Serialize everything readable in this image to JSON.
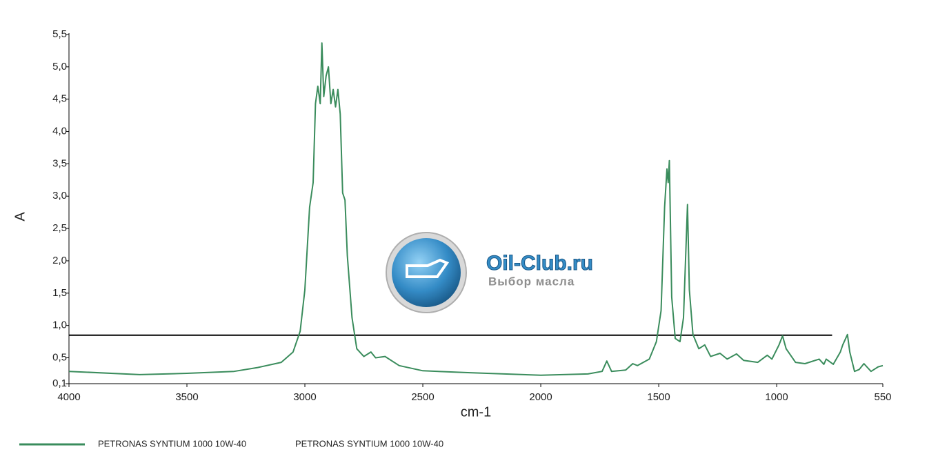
{
  "chart_data": {
    "type": "line",
    "y_label": "A",
    "x_label": "cm-1",
    "xlim": [
      4000,
      550
    ],
    "ylim": [
      0.1,
      5.5
    ],
    "xticks": [
      4000,
      3500,
      3000,
      2500,
      2000,
      1500,
      1000,
      550
    ],
    "yticks": [
      {
        "value": 0.1,
        "label": "0,1"
      },
      {
        "value": 0.5,
        "label": "0,5"
      },
      {
        "value": 1.0,
        "label": "1,0"
      },
      {
        "value": 1.5,
        "label": "1,5"
      },
      {
        "value": 2.0,
        "label": "2,0"
      },
      {
        "value": 2.5,
        "label": "2,5"
      },
      {
        "value": 3.0,
        "label": "3,0"
      },
      {
        "value": 3.5,
        "label": "3,5"
      },
      {
        "value": 4.0,
        "label": "4,0"
      },
      {
        "value": 4.5,
        "label": "4,5"
      },
      {
        "value": 5.0,
        "label": "5,0"
      },
      {
        "value": 5.5,
        "label": "5,5"
      }
    ],
    "x": [
      4000,
      3700,
      3500,
      3300,
      3200,
      3100,
      3050,
      3020,
      3000,
      2980,
      2965,
      2955,
      2945,
      2935,
      2928,
      2920,
      2910,
      2900,
      2890,
      2880,
      2870,
      2860,
      2850,
      2840,
      2830,
      2820,
      2800,
      2780,
      2750,
      2720,
      2700,
      2660,
      2600,
      2500,
      2300,
      2000,
      1800,
      1740,
      1720,
      1700,
      1640,
      1610,
      1590,
      1540,
      1510,
      1490,
      1475,
      1465,
      1460,
      1455,
      1445,
      1430,
      1410,
      1395,
      1378,
      1370,
      1355,
      1330,
      1305,
      1280,
      1240,
      1210,
      1170,
      1140,
      1080,
      1040,
      1020,
      990,
      975,
      960,
      920,
      880,
      820,
      800,
      790,
      760,
      730,
      720,
      700,
      690,
      670,
      650,
      630,
      600,
      570,
      550
    ],
    "series": [
      {
        "name": "PETRONAS SYNTIUM 1000 10W-40",
        "color": "#3a8c5c",
        "values": [
          0.29,
          0.24,
          0.26,
          0.29,
          0.35,
          0.43,
          0.59,
          0.91,
          1.55,
          2.83,
          3.21,
          4.43,
          4.7,
          4.43,
          5.37,
          4.54,
          4.86,
          5.0,
          4.43,
          4.65,
          4.38,
          4.65,
          4.27,
          3.05,
          2.94,
          2.08,
          1.12,
          0.64,
          0.52,
          0.59,
          0.5,
          0.52,
          0.38,
          0.3,
          0.27,
          0.23,
          0.25,
          0.29,
          0.45,
          0.29,
          0.31,
          0.41,
          0.38,
          0.48,
          0.75,
          1.23,
          2.83,
          3.42,
          3.21,
          3.55,
          1.44,
          0.8,
          0.75,
          1.12,
          2.87,
          1.55,
          0.86,
          0.64,
          0.7,
          0.52,
          0.57,
          0.48,
          0.56,
          0.46,
          0.43,
          0.54,
          0.48,
          0.7,
          0.84,
          0.64,
          0.43,
          0.41,
          0.48,
          0.4,
          0.48,
          0.4,
          0.59,
          0.7,
          0.86,
          0.59,
          0.29,
          0.32,
          0.41,
          0.29,
          0.36,
          0.38
        ]
      }
    ],
    "hline": {
      "y": 0.85,
      "x": [
        4000,
        765
      ],
      "color": "#000000"
    },
    "legend_extra": "PETRONAS SYNTIUM 1000 10W-40",
    "watermark": {
      "title": "Oil-Club.ru",
      "subtitle": "Выбор масла"
    }
  }
}
